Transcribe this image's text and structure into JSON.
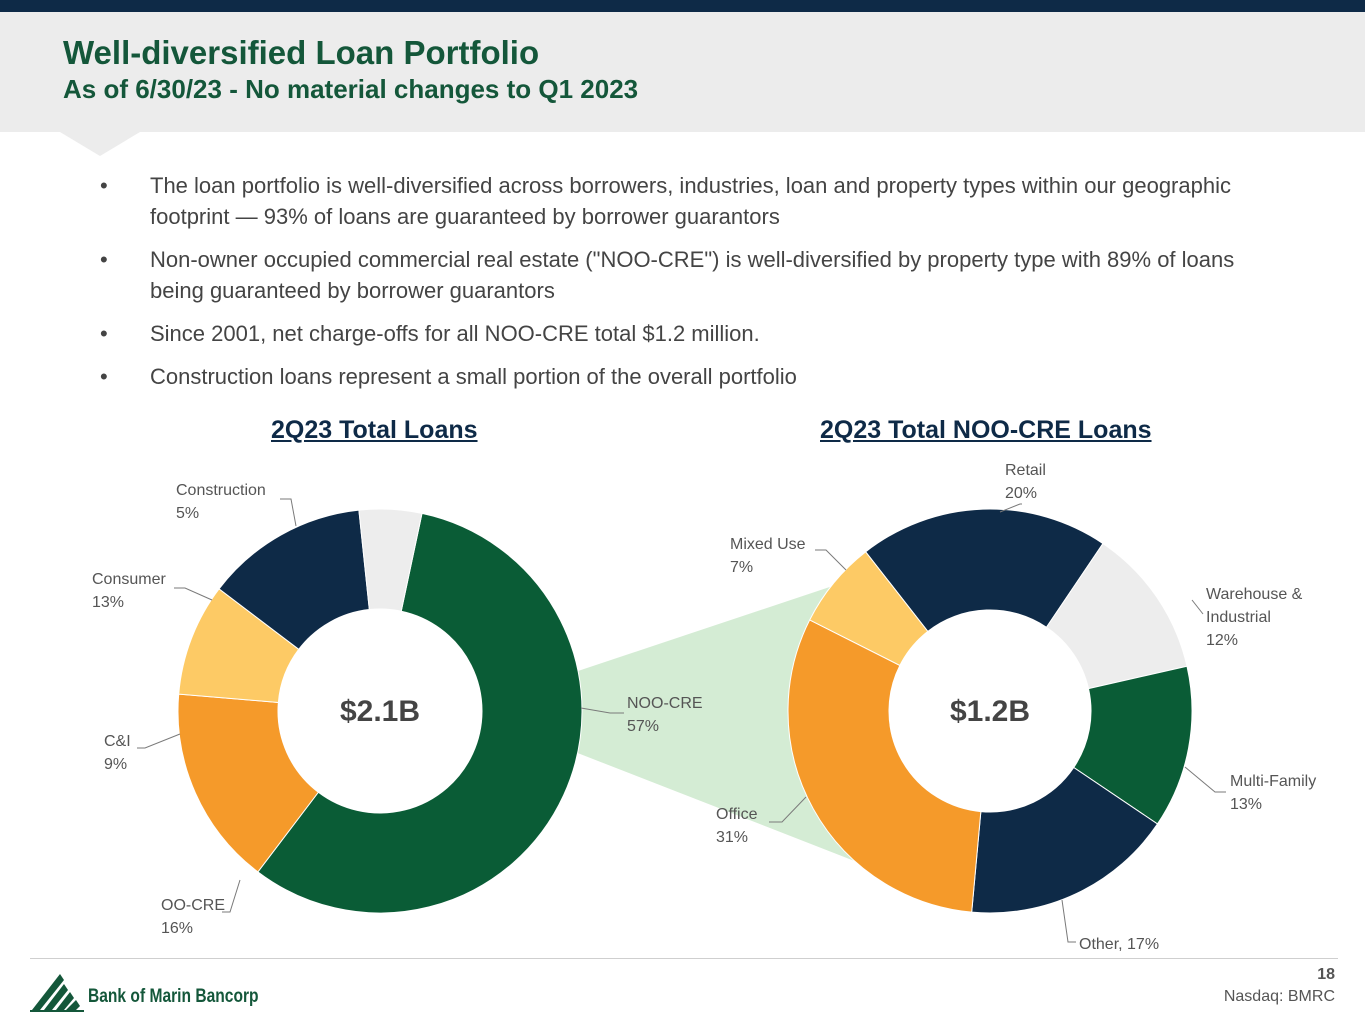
{
  "header": {
    "title": "Well-diversified Loan Portfolio",
    "subtitle": "As of 6/30/23 - No material changes to Q1 2023"
  },
  "bullets": [
    "The loan portfolio is well-diversified across borrowers, industries, loan and property types within our geographic footprint — 93% of loans are guaranteed by borrower guarantors",
    "Non-owner occupied commercial real estate (\"NOO-CRE\") is well-diversified by property type with 89% of loans being guaranteed by borrower guarantors",
    "Since 2001, net charge-offs for all NOO-CRE total $1.2 million.",
    "Construction loans represent a small portion of the overall portfolio"
  ],
  "bullet_symbol": "•",
  "colors": {
    "dark_green": "#0a5c36",
    "navy": "#0e2a47",
    "orange": "#f59a2a",
    "light_orange": "#fdca65",
    "light_gray": "#ededed",
    "connector_green": "#d4ecd4"
  },
  "chart_data": [
    {
      "type": "pie",
      "title": "2Q23 Total Loans",
      "center_label": "$2.1B",
      "slices": [
        {
          "label": "NOO-CRE",
          "value": 57,
          "display": "57%",
          "color": "#0a5c36"
        },
        {
          "label": "OO-CRE",
          "value": 16,
          "display": "16%",
          "color": "#f59a2a"
        },
        {
          "label": "C&I",
          "value": 9,
          "display": "9%",
          "color": "#fdca65"
        },
        {
          "label": "Consumer",
          "value": 13,
          "display": "13%",
          "color": "#0e2a47"
        },
        {
          "label": "Construction",
          "value": 5,
          "display": "5%",
          "color": "#ededed"
        }
      ]
    },
    {
      "type": "pie",
      "title": "2Q23 Total NOO-CRE Loans",
      "center_label": "$1.2B",
      "slices": [
        {
          "label": "Retail",
          "value": 20,
          "display": "20%",
          "color": "#0e2a47"
        },
        {
          "label": "Warehouse & Industrial",
          "value": 12,
          "display": "12%",
          "color": "#ededed"
        },
        {
          "label": "Multi-Family",
          "value": 13,
          "display": "13%",
          "color": "#0a5c36"
        },
        {
          "label": "Other",
          "value": 17,
          "display": "17%",
          "color": "#0e2a47"
        },
        {
          "label": "Office",
          "value": 31,
          "display": "31%",
          "color": "#f59a2a"
        },
        {
          "label": "Mixed Use",
          "value": 7,
          "display": "7%",
          "color": "#fdca65"
        }
      ]
    }
  ],
  "footer": {
    "company": "Bank of Marin Bancorp",
    "page_number": "18",
    "ticker": "Nasdaq: BMRC"
  }
}
